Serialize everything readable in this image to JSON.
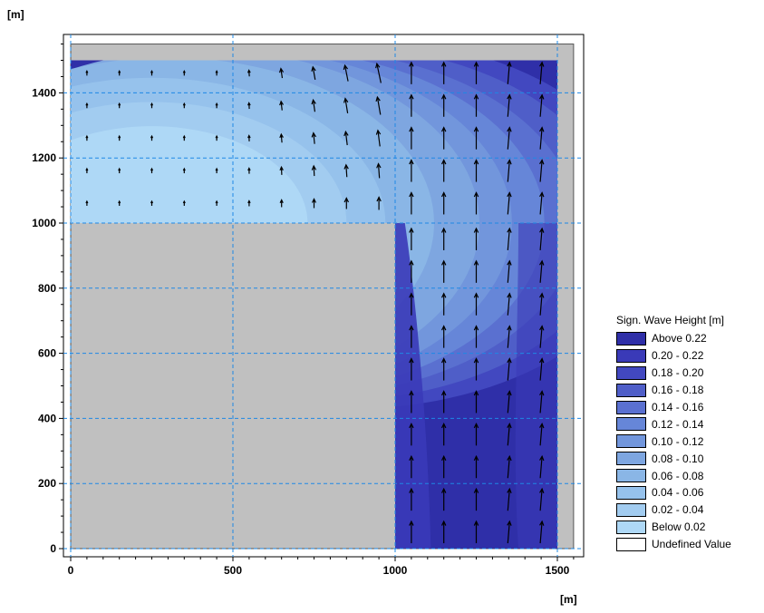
{
  "chart_data": {
    "type": "heatmap",
    "y_unit_label": "[m]",
    "x_unit_label": "[m]",
    "xlim": [
      0,
      1550
    ],
    "ylim": [
      0,
      1550
    ],
    "x_ticks": [
      0,
      500,
      1000,
      1500
    ],
    "y_ticks": [
      0,
      200,
      400,
      600,
      800,
      1000,
      1200,
      1400
    ],
    "grid": true,
    "grid_style": "dashed",
    "grid_color": "#1e88e5",
    "land_color": "#c0c0c0",
    "domain": {
      "lower_channel": {
        "x": [
          1000,
          1500
        ],
        "y": [
          0,
          1500
        ]
      },
      "upper_basin": {
        "x": [
          0,
          1500
        ],
        "y": [
          1000,
          1500
        ]
      }
    },
    "legend": {
      "title": "Sign. Wave Height [m]",
      "placement": "right",
      "items": [
        {
          "label": "Above 0.22",
          "color": "#2f2fa8"
        },
        {
          "label": "0.20 - 0.22",
          "color": "#3a3ab8"
        },
        {
          "label": "0.18 - 0.20",
          "color": "#4248c0"
        },
        {
          "label": "0.16 - 0.18",
          "color": "#4f5ec8"
        },
        {
          "label": "0.14 - 0.16",
          "color": "#5a70d0"
        },
        {
          "label": "0.12 - 0.14",
          "color": "#6686d8"
        },
        {
          "label": "0.10 - 0.12",
          "color": "#7296dc"
        },
        {
          "label": "0.08 - 0.10",
          "color": "#7ea6e0"
        },
        {
          "label": "0.06 - 0.08",
          "color": "#8ab6e6"
        },
        {
          "label": "0.04 - 0.06",
          "color": "#96c2ec"
        },
        {
          "label": "0.02 - 0.04",
          "color": "#a2ccf0"
        },
        {
          "label": "Below 0.02",
          "color": "#aed8f6"
        },
        {
          "label": "Undefined Value",
          "color": "#ffffff"
        }
      ]
    },
    "contour_zones": [
      {
        "band": "Below 0.02",
        "color": "#aed8f6",
        "center": [
          250,
          1000
        ],
        "radius": 480
      },
      {
        "band": "0.02 - 0.04",
        "color": "#a2ccf0",
        "center": [
          250,
          1000
        ],
        "radius": 600
      },
      {
        "band": "0.04 - 0.06",
        "color": "#96c2ec",
        "center": [
          250,
          1000
        ],
        "radius": 720
      },
      {
        "band": "0.06 - 0.08",
        "color": "#8ab6e6",
        "center": [
          300,
          1000
        ],
        "radius": 820
      },
      {
        "band": "0.08 - 0.10",
        "color": "#7ea6e0",
        "center": [
          400,
          1000
        ],
        "radius": 860
      },
      {
        "band": "0.10 - 0.12",
        "color": "#7296dc",
        "center": [
          500,
          1000
        ],
        "radius": 860
      },
      {
        "band": "0.12 - 0.14",
        "color": "#6686d8",
        "center": [
          600,
          1000
        ],
        "radius": 860
      },
      {
        "band": "0.14 - 0.16",
        "color": "#5a70d0",
        "center": [
          700,
          1000
        ],
        "radius": 860
      },
      {
        "band": "0.16 - 0.18",
        "color": "#4f5ec8",
        "center": [
          800,
          1000
        ],
        "radius": 880
      },
      {
        "band": "0.18 - 0.20",
        "color": "#4248c0",
        "center": [
          860,
          1000
        ],
        "radius": 920
      }
    ],
    "vectors": {
      "x": [
        50,
        150,
        250,
        350,
        450,
        550,
        650,
        750,
        850,
        950,
        1050,
        1150,
        1250,
        1350,
        1450
      ],
      "y_upper": [
        50,
        150,
        250,
        350,
        450,
        550,
        650,
        750,
        850,
        950,
        1050,
        1150,
        1250,
        1350,
        1450
      ],
      "upper_rows": [
        1060,
        1160,
        1260,
        1360,
        1460
      ],
      "direction": "north",
      "magnitude_weak": 0.02,
      "magnitude_strong": 0.22
    }
  }
}
